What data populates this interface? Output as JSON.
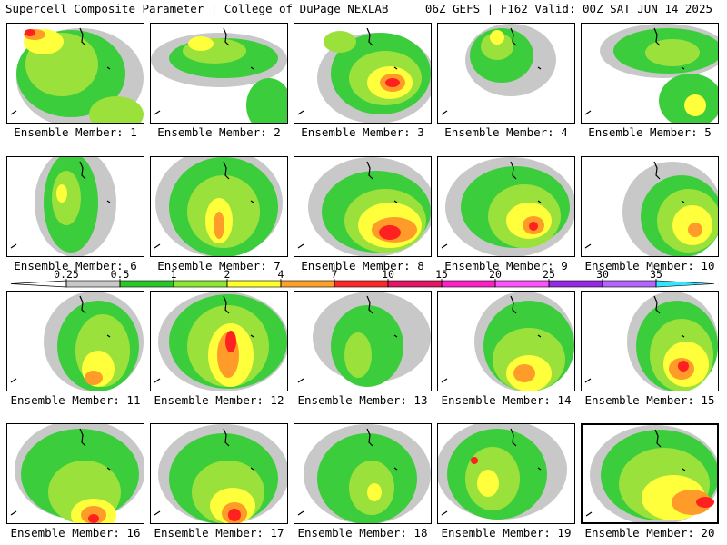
{
  "header": {
    "title": "Supercell Composite Parameter | College of DuPage NEXLAB",
    "run_info": "06Z GEFS | F162 Valid: 00Z SAT JUN 14 2025"
  },
  "colorbar": {
    "ticks": [
      "0.25",
      "0.5",
      "1",
      "2",
      "4",
      "7",
      "10",
      "15",
      "20",
      "25",
      "30",
      "35"
    ],
    "colors": [
      "#c8c8c8",
      "#28c828",
      "#8ce632",
      "#ffff28",
      "#ffa028",
      "#ff2828",
      "#e61464",
      "#ff1ec8",
      "#ff50ff",
      "#9628e6",
      "#b464ff",
      "#32e6ff"
    ]
  },
  "map_colors": {
    "gray": "#c8c8c8",
    "green": "#3ccd3c",
    "lime": "#9be13c",
    "yellow": "#ffff3c",
    "orange": "#ff9b28",
    "red": "#ff2020",
    "magenta": "#e6145a"
  },
  "members": [
    {
      "label": "Ensemble Member: 1"
    },
    {
      "label": "Ensemble Member: 2"
    },
    {
      "label": "Ensemble Member: 3"
    },
    {
      "label": "Ensemble Member: 4"
    },
    {
      "label": "Ensemble Member: 5"
    },
    {
      "label": "Ensemble Member: 6"
    },
    {
      "label": "Ensemble Member: 7"
    },
    {
      "label": "Ensemble Member: 8"
    },
    {
      "label": "Ensemble Member: 9"
    },
    {
      "label": "Ensemble Member: 10"
    },
    {
      "label": "Ensemble Member: 11"
    },
    {
      "label": "Ensemble Member: 12"
    },
    {
      "label": "Ensemble Member: 13"
    },
    {
      "label": "Ensemble Member: 14"
    },
    {
      "label": "Ensemble Member: 15"
    },
    {
      "label": "Ensemble Member: 16"
    },
    {
      "label": "Ensemble Member: 17"
    },
    {
      "label": "Ensemble Member: 18"
    },
    {
      "label": "Ensemble Member: 19"
    },
    {
      "label": "Ensemble Member: 20"
    }
  ]
}
